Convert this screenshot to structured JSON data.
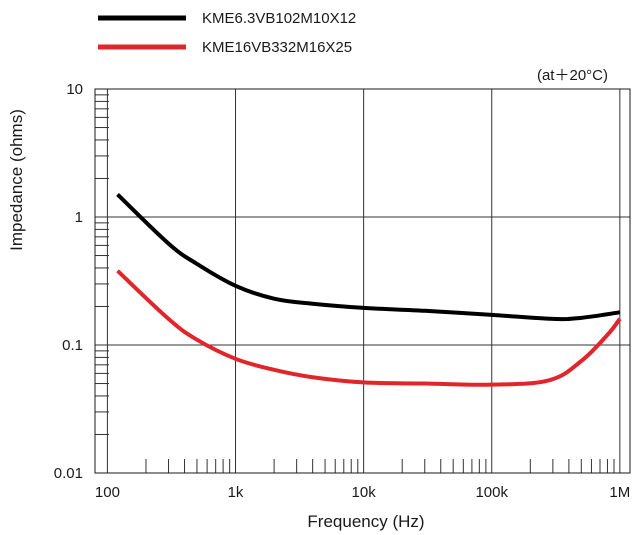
{
  "chart_data": {
    "type": "line",
    "xscale": "log",
    "yscale": "log",
    "xlim": [
      80,
      1200000
    ],
    "ylim": [
      0.01,
      10
    ],
    "xlabel": "Frequency (Hz)",
    "ylabel": "Impedance (ohms)",
    "annotation": "(at＋20°C)",
    "grid": true,
    "legend_position": "top-left",
    "x_ticks": [
      {
        "value": 100,
        "label": "100"
      },
      {
        "value": 1000,
        "label": "1k"
      },
      {
        "value": 10000,
        "label": "10k"
      },
      {
        "value": 100000,
        "label": "100k"
      },
      {
        "value": 1000000,
        "label": "1M"
      }
    ],
    "y_ticks": [
      {
        "value": 10,
        "label": "10"
      },
      {
        "value": 1,
        "label": "1"
      },
      {
        "value": 0.1,
        "label": "0.1"
      },
      {
        "value": 0.01,
        "label": "0.01"
      }
    ],
    "series": [
      {
        "name": "KME6.3VB102M10X12",
        "color": "#000000",
        "x": [
          120,
          300,
          500,
          1000,
          2000,
          4000,
          10000,
          30000,
          100000,
          300000,
          500000,
          1000000
        ],
        "y": [
          1.5,
          0.62,
          0.43,
          0.29,
          0.23,
          0.21,
          0.195,
          0.185,
          0.172,
          0.16,
          0.163,
          0.18
        ]
      },
      {
        "name": "KME16VB332M16X25",
        "color": "#e0262b",
        "x": [
          120,
          300,
          500,
          1000,
          2000,
          4000,
          10000,
          30000,
          100000,
          280000,
          500000,
          800000,
          1000000
        ],
        "y": [
          0.38,
          0.16,
          0.11,
          0.078,
          0.064,
          0.056,
          0.051,
          0.05,
          0.049,
          0.053,
          0.075,
          0.12,
          0.16
        ]
      }
    ]
  }
}
